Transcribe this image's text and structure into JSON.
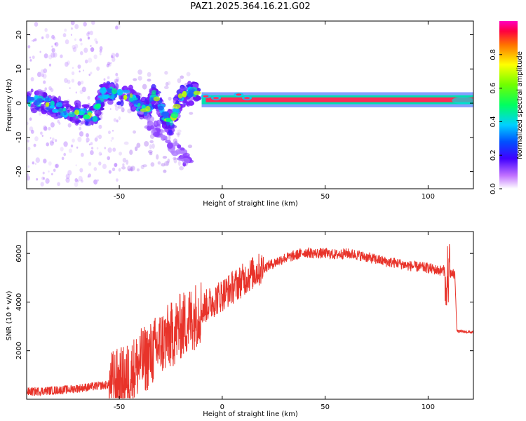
{
  "title": "PAZ1.2025.364.16.21.G02",
  "colors": {
    "snr_line": "#e8332a",
    "carrier": "#ff2b55",
    "scatter": "#8a2be2",
    "axis": "#000000"
  },
  "chart_data": [
    {
      "type": "heatmap",
      "name": "spectrogram",
      "xlabel": "Height of straight line (km)",
      "ylabel": "Frequency (Hz)",
      "xlim": [
        -95,
        122
      ],
      "ylim": [
        -25,
        24
      ],
      "xticks": [
        -50,
        0,
        50,
        100
      ],
      "yticks": [
        -20,
        -10,
        0,
        10,
        20
      ],
      "carrier_band": {
        "x_start": -10,
        "x_end": 122,
        "freq_hz": 1,
        "amplitude": 0.95
      },
      "colorbar": {
        "label": "Normalized spectral amplitude",
        "range": [
          0,
          1
        ],
        "ticks": [
          0.0,
          0.2,
          0.4,
          0.6,
          0.8
        ],
        "tick_labels": [
          "0.0",
          "0.2",
          "0.4",
          "0.6",
          "0.8"
        ]
      }
    },
    {
      "type": "line",
      "name": "snr",
      "xlabel": "Height of straight line (km)",
      "ylabel": "SNR (10 * v/v)",
      "xlim": [
        -95,
        122
      ],
      "ylim": [
        0,
        6900
      ],
      "xticks": [
        -50,
        0,
        50,
        100
      ],
      "yticks": [
        2000,
        4000,
        6000
      ],
      "series": [
        {
          "name": "SNR",
          "x": [
            -95,
            -85,
            -75,
            -65,
            -55,
            -48,
            -45,
            -40,
            -35,
            -30,
            -25,
            -20,
            -15,
            -10,
            -5,
            0,
            5,
            10,
            15,
            20,
            25,
            30,
            35,
            40,
            45,
            50,
            55,
            60,
            65,
            70,
            75,
            80,
            85,
            90,
            95,
            100,
            105,
            108,
            110,
            112,
            113,
            114,
            122
          ],
          "values": [
            300,
            350,
            400,
            500,
            600,
            800,
            1000,
            1500,
            1800,
            2300,
            2600,
            3000,
            3300,
            3700,
            4000,
            4300,
            4600,
            4900,
            5200,
            5400,
            5600,
            5800,
            5900,
            6050,
            6000,
            6000,
            5950,
            6000,
            5950,
            5850,
            5750,
            5650,
            5600,
            5500,
            5450,
            5400,
            5300,
            5300,
            5200,
            5150,
            5100,
            2800,
            2750
          ]
        }
      ]
    }
  ]
}
